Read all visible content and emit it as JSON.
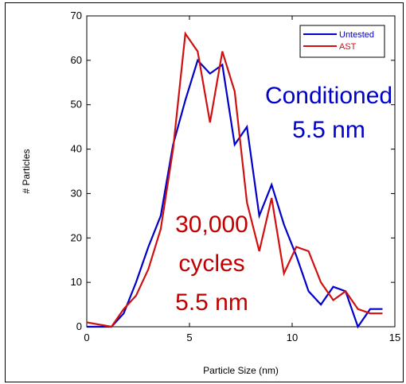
{
  "chart_data": {
    "type": "line",
    "title": "",
    "xlabel": "Particle Size (nm)",
    "ylabel": "# Particles",
    "xlim": [
      0,
      15
    ],
    "ylim": [
      0,
      70
    ],
    "xticks": [
      0,
      5,
      10,
      15
    ],
    "yticks": [
      0,
      10,
      20,
      30,
      40,
      50,
      60,
      70
    ],
    "grid": false,
    "legend_position": "top-right",
    "series": [
      {
        "name": "Untested",
        "color": "#0000c8",
        "x": [
          0,
          1.2,
          1.8,
          2.4,
          3,
          3.6,
          4.2,
          4.8,
          5.4,
          6,
          6.6,
          7.2,
          7.8,
          8.4,
          9,
          9.6,
          10.2,
          10.8,
          11.4,
          12,
          12.6,
          13.2,
          13.8,
          14.4
        ],
        "y": [
          0,
          0,
          3,
          10,
          18,
          25,
          41,
          51,
          60,
          57,
          59,
          41,
          45,
          25,
          32,
          23,
          16,
          8,
          5,
          9,
          8,
          0,
          4,
          4
        ]
      },
      {
        "name": "AST",
        "color": "#d01010",
        "x": [
          0,
          1.2,
          1.8,
          2.4,
          3,
          3.6,
          4.2,
          4.8,
          5.4,
          6,
          6.6,
          7.2,
          7.8,
          8.4,
          9,
          9.6,
          10.2,
          10.8,
          11.4,
          12,
          12.6,
          13.2,
          13.8,
          14.4
        ],
        "y": [
          1,
          0,
          4,
          7,
          13,
          22,
          40,
          66,
          62,
          46,
          62,
          53,
          28,
          17,
          29,
          12,
          18,
          17,
          10,
          6,
          8,
          4,
          3,
          3
        ]
      }
    ],
    "annotations": [
      {
        "lines": [
          "Conditioned",
          "5.5 nm"
        ],
        "color": "#0000c8"
      },
      {
        "lines": [
          "30,000",
          "cycles",
          "5.5 nm"
        ],
        "color": "#c00000"
      }
    ]
  }
}
